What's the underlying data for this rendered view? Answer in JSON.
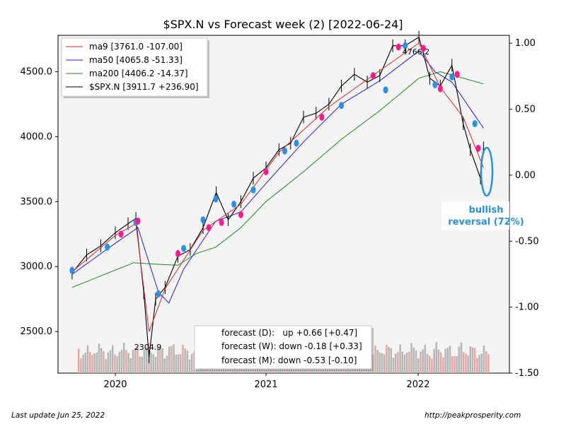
{
  "chart_data": {
    "type": "candlestick",
    "title": "$SPX.N vs Forecast week (2) [2022-06-24]",
    "x_ticks": [
      "2020",
      "2021",
      "2022"
    ],
    "y_left": {
      "ticks": [
        "2500.0",
        "3000.0",
        "3500.0",
        "4000.0",
        "4500.0"
      ],
      "ylim": [
        2180,
        4780
      ]
    },
    "y_right": {
      "ticks": [
        "1.00",
        "0.50",
        "0.00",
        "-0.50",
        "-1.00",
        "-1.50"
      ],
      "ylim": [
        -1.5,
        1.06
      ]
    },
    "grid": false,
    "legend_position": "top-left",
    "legend": [
      {
        "label": "ma9 [3761.0 -107.00]",
        "color": "#d62728"
      },
      {
        "label": "ma50 [4065.8 -51.33]",
        "color": "#1f1fd6"
      },
      {
        "label": "ma200 [4406.2 -14.37]",
        "color": "#1a8a1a"
      },
      {
        "label": "$SPX.N [3911.7 +236.90]",
        "color": "#000000"
      }
    ],
    "annotations": {
      "high": "4766.2",
      "low": "2304.9"
    },
    "forecast_lines": [
      "forecast (D):   up +0.66 [+0.47]",
      "forecast (W): down -0.18 [+0.33]",
      "forecast (M): down -0.53 [-0.10]"
    ],
    "callout": {
      "line1": "bullish",
      "line2": "reversal (72%)"
    },
    "colors": {
      "up": "#2a8fe8",
      "down": "#ff1a8c",
      "callout": "#2a8fe8"
    },
    "series": [
      {
        "name": "$SPX.N",
        "points": [
          [
            "2019-10-01",
            2950
          ],
          [
            "2019-11-01",
            3090
          ],
          [
            "2019-12-01",
            3160
          ],
          [
            "2020-01-01",
            3260
          ],
          [
            "2020-02-01",
            3330
          ],
          [
            "2020-02-20",
            3370
          ],
          [
            "2020-03-10",
            2800
          ],
          [
            "2020-03-23",
            2304.9
          ],
          [
            "2020-04-08",
            2750
          ],
          [
            "2020-05-01",
            2840
          ],
          [
            "2020-06-01",
            3080
          ],
          [
            "2020-07-01",
            3130
          ],
          [
            "2020-08-01",
            3300
          ],
          [
            "2020-09-02",
            3570
          ],
          [
            "2020-10-01",
            3360
          ],
          [
            "2020-11-01",
            3500
          ],
          [
            "2020-12-01",
            3680
          ],
          [
            "2021-01-01",
            3760
          ],
          [
            "2021-02-01",
            3900
          ],
          [
            "2021-03-01",
            3950
          ],
          [
            "2021-04-01",
            4150
          ],
          [
            "2021-05-01",
            4180
          ],
          [
            "2021-06-01",
            4250
          ],
          [
            "2021-07-01",
            4390
          ],
          [
            "2021-08-01",
            4480
          ],
          [
            "2021-09-01",
            4420
          ],
          [
            "2021-10-01",
            4470
          ],
          [
            "2021-11-01",
            4700
          ],
          [
            "2021-12-01",
            4700
          ],
          [
            "2022-01-03",
            4766.2
          ],
          [
            "2022-02-01",
            4450
          ],
          [
            "2022-03-01",
            4390
          ],
          [
            "2022-04-01",
            4550
          ],
          [
            "2022-05-01",
            4100
          ],
          [
            "2022-05-20",
            3900
          ],
          [
            "2022-06-16",
            3680
          ],
          [
            "2022-06-24",
            3911.7
          ]
        ]
      },
      {
        "name": "ma9",
        "points": [
          [
            "2019-10-01",
            2960
          ],
          [
            "2020-01-01",
            3240
          ],
          [
            "2020-02-20",
            3330
          ],
          [
            "2020-03-23",
            2500
          ],
          [
            "2020-05-01",
            2830
          ],
          [
            "2020-08-01",
            3280
          ],
          [
            "2020-11-01",
            3480
          ],
          [
            "2021-02-01",
            3880
          ],
          [
            "2021-06-01",
            4230
          ],
          [
            "2021-09-01",
            4440
          ],
          [
            "2022-01-03",
            4720
          ],
          [
            "2022-03-01",
            4380
          ],
          [
            "2022-05-01",
            4150
          ],
          [
            "2022-06-24",
            3761.0
          ]
        ]
      },
      {
        "name": "ma50",
        "points": [
          [
            "2019-10-01",
            2940
          ],
          [
            "2020-01-01",
            3180
          ],
          [
            "2020-02-25",
            3300
          ],
          [
            "2020-04-15",
            2800
          ],
          [
            "2020-05-10",
            2720
          ],
          [
            "2020-06-15",
            2980
          ],
          [
            "2020-09-01",
            3350
          ],
          [
            "2020-11-01",
            3420
          ],
          [
            "2021-01-01",
            3640
          ],
          [
            "2021-04-01",
            3960
          ],
          [
            "2021-07-01",
            4250
          ],
          [
            "2021-10-01",
            4430
          ],
          [
            "2022-01-03",
            4660
          ],
          [
            "2022-02-15",
            4500
          ],
          [
            "2022-04-01",
            4420
          ],
          [
            "2022-06-24",
            4065.8
          ]
        ]
      },
      {
        "name": "ma200",
        "points": [
          [
            "2019-10-01",
            2840
          ],
          [
            "2020-02-15",
            3030
          ],
          [
            "2020-04-01",
            3020
          ],
          [
            "2020-06-01",
            3010
          ],
          [
            "2020-07-15",
            3100
          ],
          [
            "2020-09-01",
            3150
          ],
          [
            "2020-11-01",
            3300
          ],
          [
            "2021-01-01",
            3500
          ],
          [
            "2021-04-01",
            3730
          ],
          [
            "2021-07-01",
            3980
          ],
          [
            "2021-10-01",
            4200
          ],
          [
            "2022-01-03",
            4450
          ],
          [
            "2022-03-01",
            4500
          ],
          [
            "2022-06-24",
            4406.2
          ]
        ]
      }
    ],
    "signals": {
      "up": [
        [
          "2019-10-01",
          2970
        ],
        [
          "2019-12-15",
          3150
        ],
        [
          "2020-02-20",
          3340
        ],
        [
          "2020-04-15",
          2790
        ],
        [
          "2020-06-15",
          3140
        ],
        [
          "2020-08-01",
          3360
        ],
        [
          "2020-09-01",
          3520
        ],
        [
          "2020-10-15",
          3480
        ],
        [
          "2020-12-01",
          3590
        ],
        [
          "2021-02-15",
          3890
        ],
        [
          "2021-03-15",
          3950
        ],
        [
          "2021-07-01",
          4240
        ],
        [
          "2021-10-15",
          4360
        ],
        [
          "2021-12-01",
          4700
        ],
        [
          "2022-02-15",
          4400
        ],
        [
          "2022-04-01",
          4460
        ],
        [
          "2022-06-01",
          4100
        ]
      ],
      "down": [
        [
          "2020-01-15",
          3250
        ],
        [
          "2020-02-25",
          3350
        ],
        [
          "2020-06-01",
          3100
        ],
        [
          "2020-08-15",
          3300
        ],
        [
          "2020-09-15",
          3340
        ],
        [
          "2020-11-01",
          3400
        ],
        [
          "2021-01-01",
          3730
        ],
        [
          "2021-05-15",
          4150
        ],
        [
          "2021-09-15",
          4470
        ],
        [
          "2021-11-15",
          4690
        ],
        [
          "2022-01-15",
          4680
        ],
        [
          "2022-03-01",
          4370
        ],
        [
          "2022-04-15",
          4480
        ],
        [
          "2022-06-10",
          3910
        ]
      ]
    }
  },
  "footer": {
    "left": "Last update Jun 25, 2022",
    "right": "http://peakprosperity.com"
  }
}
